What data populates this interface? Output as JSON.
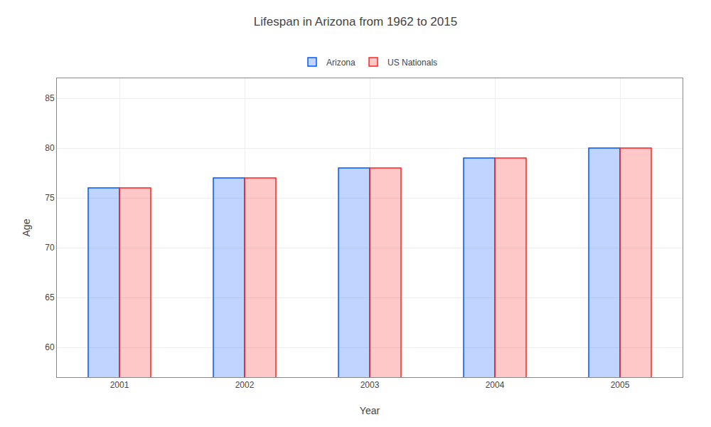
{
  "chart_data": {
    "type": "bar",
    "title": "Lifespan in Arizona from 1962 to 2015",
    "x_label": "Year",
    "y_label": "Age",
    "categories": [
      "2001",
      "2002",
      "2003",
      "2004",
      "2005"
    ],
    "series": [
      {
        "name": "Arizona",
        "color": "#0055ff",
        "values": [
          76.0,
          77.0,
          78.0,
          79.0,
          80.0
        ]
      },
      {
        "name": "US Nationals",
        "color": "#ff2222",
        "values": [
          76.0,
          77.0,
          78.0,
          79.0,
          80.0
        ]
      }
    ],
    "ylim": [
      57,
      87
    ],
    "yticks": [
      60,
      65,
      70,
      75,
      80,
      85
    ],
    "grid": true,
    "legend": "top"
  }
}
